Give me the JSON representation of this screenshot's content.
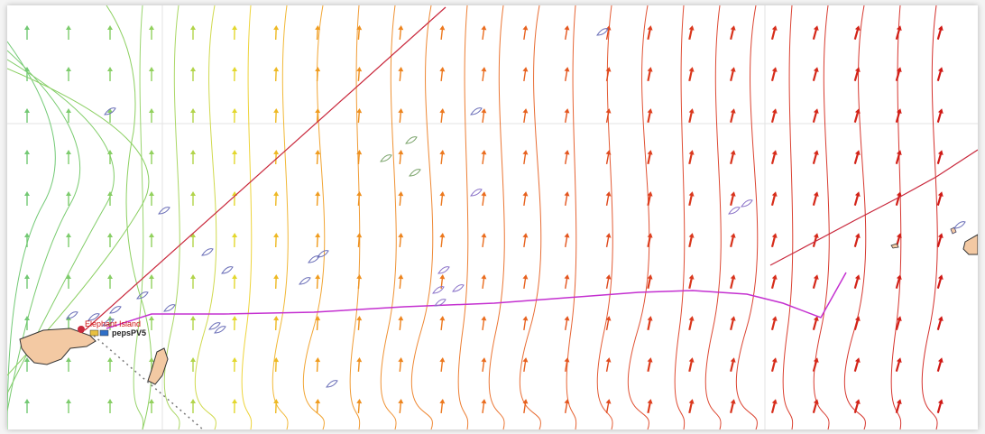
{
  "map": {
    "place_label": "Elephant Island",
    "boat_name": "pepsPV5",
    "colors": {
      "background": "#ffffff",
      "graticule": "#e3e3e3",
      "land_fill": "#f3c9a3",
      "land_stroke": "#333333",
      "route_line": "#c9283c",
      "track_line": "#c430d0",
      "ghost_boat": "#6b6fb8",
      "label_text": "#d01010"
    }
  }
}
